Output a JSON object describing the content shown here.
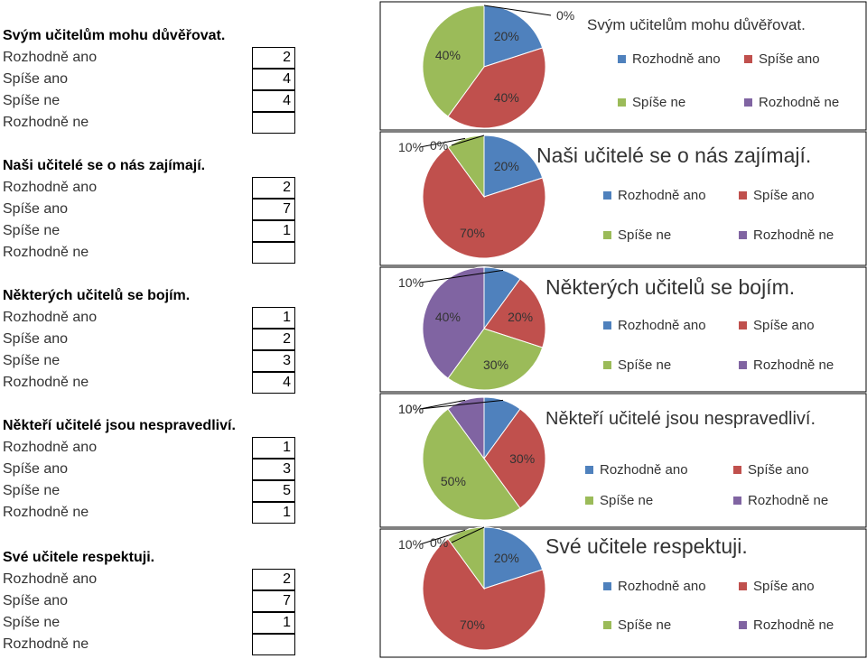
{
  "colors": {
    "Rozhodně ano": "#4f81bd",
    "Spíše ano": "#c0504d",
    "Spíše ne": "#9bbb59",
    "Rozhodně ne": "#8064a2",
    "border": "#000000"
  },
  "chart_data": [
    {
      "type": "pie",
      "title": "Svým učitelům mohu důvěřovat.",
      "categories": [
        "Rozhodně ano",
        "Spíše ano",
        "Spíše ne",
        "Rozhodně ne"
      ],
      "values": [
        2,
        4,
        4,
        0
      ],
      "labels": [
        "20%",
        "40%",
        "40%",
        "0%"
      ],
      "legend": "right"
    },
    {
      "type": "pie",
      "title": "Naši učitelé se o nás zajímají.",
      "categories": [
        "Rozhodně ano",
        "Spíše ano",
        "Spíše ne",
        "Rozhodně ne"
      ],
      "values": [
        2,
        7,
        1,
        0
      ],
      "labels": [
        "20%",
        "70%",
        "10%",
        "0%"
      ],
      "legend": "right"
    },
    {
      "type": "pie",
      "title": "Některých učitelů se bojím.",
      "categories": [
        "Rozhodně ano",
        "Spíše ano",
        "Spíše ne",
        "Rozhodně ne"
      ],
      "values": [
        1,
        2,
        3,
        4
      ],
      "labels": [
        "10%",
        "20%",
        "30%",
        "40%"
      ],
      "legend": "right"
    },
    {
      "type": "pie",
      "title": "Někteří učitelé jsou nespravedliví.",
      "categories": [
        "Rozhodně ano",
        "Spíše ano",
        "Spíše ne",
        "Rozhodně ne"
      ],
      "values": [
        1,
        3,
        5,
        1
      ],
      "labels": [
        "10%",
        "30%",
        "50%",
        "10%"
      ],
      "legend": "right"
    },
    {
      "type": "pie",
      "title": "Své učitele respektuji.",
      "categories": [
        "Rozhodně ano",
        "Spíše ano",
        "Spíše ne",
        "Rozhodně ne"
      ],
      "values": [
        2,
        7,
        1,
        0
      ],
      "labels": [
        "20%",
        "70%",
        "10%",
        "0%"
      ],
      "legend": "right"
    }
  ]
}
